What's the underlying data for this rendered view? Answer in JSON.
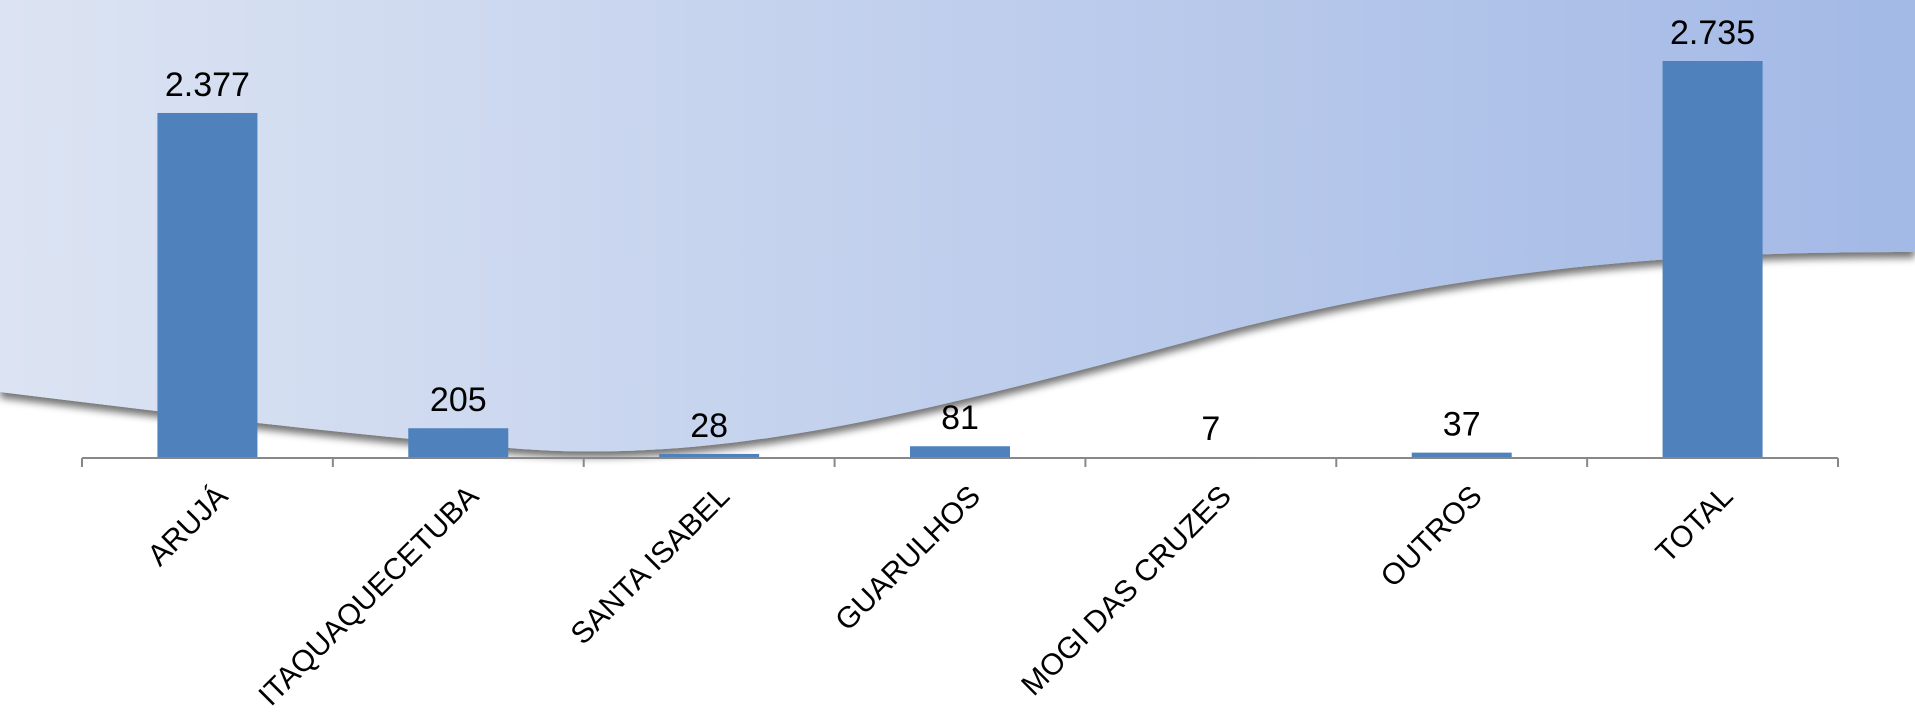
{
  "chart_data": {
    "type": "bar",
    "title": "",
    "xlabel": "",
    "ylabel": "",
    "categories": [
      "ARUJÁ",
      "ITAQUAQUECETUBA",
      "SANTA ISABEL",
      "GUARULHOS",
      "MOGI DAS CRUZES",
      "OUTROS",
      "TOTAL"
    ],
    "values": [
      2377,
      205,
      28,
      81,
      7,
      37,
      2735
    ],
    "value_labels": [
      "2.377",
      "205",
      "28",
      "81",
      "7",
      "37",
      "2.735"
    ],
    "ylim": [
      0,
      2735
    ],
    "grid": false,
    "legend": "none",
    "colors": {
      "bar": "#4F81BD",
      "axis": "#888888",
      "background_light": "#DCE4F3",
      "background_dark": "#A3B9E6"
    }
  }
}
